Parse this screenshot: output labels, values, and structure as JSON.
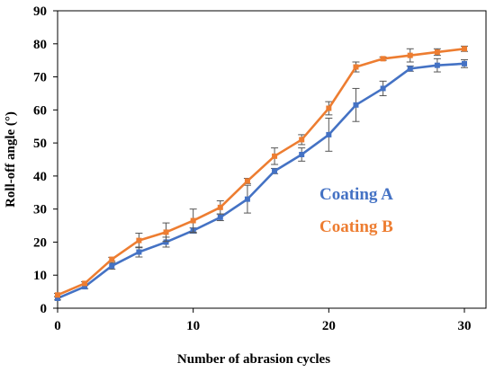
{
  "chart_data": {
    "type": "line",
    "xlabel": "Number of abrasion cycles",
    "ylabel": "Roll-off angle  (°)",
    "xlim": [
      0,
      30
    ],
    "ylim": [
      0,
      90
    ],
    "x_ticks": [
      0,
      10,
      20,
      30
    ],
    "y_ticks": [
      0,
      10,
      20,
      30,
      40,
      50,
      60,
      70,
      80,
      90
    ],
    "x_tick_labels": [
      "0",
      "10",
      "20",
      "30"
    ],
    "y_tick_labels": [
      "0",
      "10",
      "20",
      "30",
      "40",
      "50",
      "60",
      "70",
      "80",
      "90"
    ],
    "grid": false,
    "legend_placement": "center-right",
    "x": [
      0,
      2,
      4,
      6,
      8,
      10,
      12,
      14,
      16,
      18,
      20,
      22,
      24,
      26,
      28,
      30
    ],
    "series": [
      {
        "name": "Coating A",
        "color": "#4472C4",
        "values": [
          3,
          6.5,
          12.8,
          17,
          20,
          23.5,
          27.5,
          33,
          41.5,
          46.5,
          52.5,
          61.5,
          66.5,
          72.5,
          73.5,
          74
        ],
        "errors": [
          0.5,
          0.6,
          1.0,
          1.5,
          1.5,
          0.8,
          1.0,
          4.2,
          0.8,
          2.0,
          5.0,
          5.0,
          2.2,
          0.8,
          2.0,
          1.2
        ]
      },
      {
        "name": "Coating B",
        "color": "#ED7D31",
        "values": [
          4,
          7.5,
          14.8,
          20.5,
          23,
          26.5,
          30.5,
          38.5,
          46,
          51,
          60.5,
          73,
          75.5,
          76.5,
          77.5,
          78.5
        ],
        "errors": [
          0.5,
          0.5,
          0.6,
          2.2,
          2.8,
          3.5,
          2.0,
          0.8,
          2.5,
          1.5,
          2.0,
          1.5,
          0.5,
          2.0,
          1.0,
          0.8
        ]
      }
    ]
  }
}
